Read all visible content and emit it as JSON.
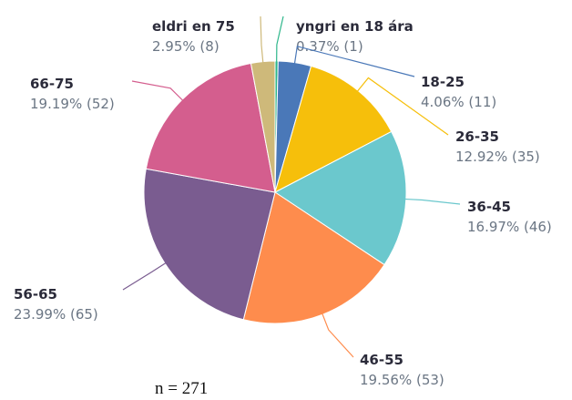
{
  "chart_data": {
    "type": "pie",
    "categories": [
      "yngri en 18 ára",
      "18-25",
      "26-35",
      "36-45",
      "46-55",
      "56-65",
      "66-75",
      "eldri en 75"
    ],
    "values": [
      0.37,
      4.06,
      12.92,
      16.97,
      19.56,
      23.99,
      19.19,
      2.95
    ],
    "value_labels": [
      "0.37% (1)",
      "4.06% (11)",
      "12.92% (35)",
      "16.97% (46)",
      "19.56% (53)",
      "23.99% (65)",
      "19.19% (52)",
      "2.95% (8)"
    ],
    "colors": [
      "#2db68a",
      "#4a78b8",
      "#f6bf0b",
      "#6bc8cd",
      "#fe8c4d",
      "#7a5c90",
      "#d45e8e",
      "#ceb97a"
    ],
    "annotation": "n = 271"
  }
}
